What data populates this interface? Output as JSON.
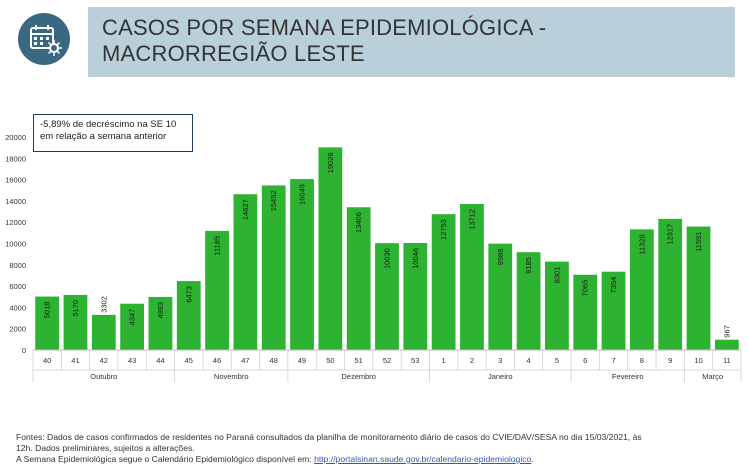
{
  "header": {
    "icon": "calendar-virus-icon",
    "title_line1": "CASOS POR SEMANA EPIDEMIOLÓGICA -",
    "title_line2": "MACRORREGIÃO LESTE"
  },
  "annotation": "-5,89% de decréscimo na SE 10 em relação a semana anterior",
  "chart_data": {
    "type": "bar",
    "categories": [
      "40",
      "41",
      "42",
      "43",
      "44",
      "45",
      "46",
      "47",
      "48",
      "49",
      "50",
      "51",
      "52",
      "53",
      "1",
      "2",
      "3",
      "4",
      "5",
      "6",
      "7",
      "8",
      "9",
      "10",
      "11"
    ],
    "values": [
      5018,
      5170,
      3302,
      4347,
      4983,
      6473,
      11185,
      14627,
      15452,
      16049,
      19026,
      13406,
      10030,
      10046,
      12753,
      13712,
      9988,
      9185,
      8301,
      7065,
      7354,
      11328,
      12317,
      11591,
      967
    ],
    "month_groups": [
      {
        "label": "Outubro",
        "count": 5
      },
      {
        "label": "Novembro",
        "count": 4
      },
      {
        "label": "Dezembro",
        "count": 5
      },
      {
        "label": "Janeiro",
        "count": 5
      },
      {
        "label": "Fevereiro",
        "count": 4
      },
      {
        "label": "Março",
        "count": 2
      }
    ],
    "ylim": [
      0,
      20000
    ],
    "yticks": [
      0,
      2000,
      4000,
      6000,
      8000,
      10000,
      12000,
      14000,
      16000,
      18000,
      20000
    ],
    "bar_color": "#2db232",
    "grid": false,
    "legend": "none"
  },
  "footer": {
    "line1": "Fontes: Dados de casos confirmados de residentes no Paraná consultados da planilha de monitoramento diário de casos do CVIE/DAV/SESA no dia 15/03/2021, às",
    "line2": "12h. Dados preliminares, sujeitos a alterações.",
    "line3_prefix": "A Semana Epidemiológica segue o Calendário Epidemiológico disponível em: ",
    "link": "http://portalsinan.saude.gov.br/calendario-epidemiologico",
    "line3_suffix": "."
  }
}
